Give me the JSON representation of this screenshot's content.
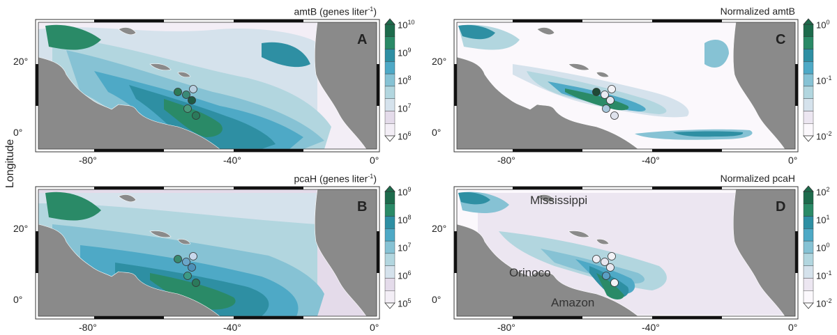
{
  "y_axis_label": "Longitude",
  "panels": [
    {
      "letter": "A",
      "title_main": "amtB (genes liter",
      "title_exp": "-1",
      "title_close": ")",
      "y_ticks": [
        "20°",
        "0°"
      ],
      "x_ticks": [
        "-80°",
        "-40°",
        "0°"
      ],
      "colorbar": {
        "base": "10",
        "exponents": [
          "10",
          "9",
          "8",
          "7",
          "6"
        ],
        "colors": [
          "#1d6b4c",
          "#2a8a67",
          "#2e8fa3",
          "#4ea9c6",
          "#86c2d4",
          "#b2d6df",
          "#d5e2ec",
          "#e4dbea",
          "#f3eef6"
        ]
      },
      "stations": [
        {
          "color": "#2d7a58"
        },
        {
          "color": "#3a8a78"
        },
        {
          "color": "#b9cfe0"
        },
        {
          "color": "#1f5a44"
        },
        {
          "color": "#4b9a7c"
        },
        {
          "color": "#2b7a5b"
        }
      ]
    },
    {
      "letter": "B",
      "title_main": "pcaH (genes liter",
      "title_exp": "-1",
      "title_close": ")",
      "y_ticks": [
        "20°",
        "0°"
      ],
      "x_ticks": [
        "-80°",
        "-40°",
        "0°"
      ],
      "colorbar": {
        "base": "10",
        "exponents": [
          "9",
          "8",
          "7",
          "6",
          "5"
        ],
        "colors": [
          "#1d6b4c",
          "#2a8a67",
          "#2e8fa3",
          "#4ea9c6",
          "#86c2d4",
          "#b2d6df",
          "#d5e2ec",
          "#e4dbea",
          "#f3eef6"
        ]
      },
      "stations": [
        {
          "color": "#3a8a6e"
        },
        {
          "color": "#6aa6c9"
        },
        {
          "color": "#c8d8ec"
        },
        {
          "color": "#4d90b7"
        },
        {
          "color": "#3c9a85"
        },
        {
          "color": "#2b7a5b"
        }
      ]
    },
    {
      "letter": "C",
      "title_main": "Normalized amtB",
      "y_ticks": [
        "20°",
        "0°"
      ],
      "x_ticks": [
        "-80°",
        "-40°",
        "0°"
      ],
      "colorbar": {
        "base": "10",
        "exponents": [
          "0",
          "-1",
          "-2"
        ],
        "colors": [
          "#1d6b4c",
          "#2a8a67",
          "#2e8fa3",
          "#4ea9c6",
          "#86c2d4",
          "#b2d6df",
          "#d5e2ec",
          "#ece6f1",
          "#fbf8fc"
        ]
      },
      "stations": [
        {
          "color": "#1f4a36"
        },
        {
          "color": "#e8eaf2"
        },
        {
          "color": "#f2f2f6"
        },
        {
          "color": "#e6e8f0"
        },
        {
          "color": "#a7c7db"
        },
        {
          "color": "#dfe2ec"
        }
      ]
    },
    {
      "letter": "D",
      "title_main": "Normalized pcaH",
      "y_ticks": [
        "20°",
        "0°"
      ],
      "x_ticks": [
        "-80°",
        "-40°",
        "0°"
      ],
      "colorbar": {
        "base": "10",
        "exponents": [
          "2",
          "1",
          "0",
          "-1",
          "-2"
        ],
        "colors": [
          "#1d6b4c",
          "#2a8a67",
          "#2e8fa3",
          "#4ea9c6",
          "#86c2d4",
          "#b2d6df",
          "#d5e2ec",
          "#ece6f1",
          "#fbf8fc"
        ]
      },
      "stations": [
        {
          "color": "#eeeef4"
        },
        {
          "color": "#e6e6ef"
        },
        {
          "color": "#f2f2f6"
        },
        {
          "color": "#e8e8f0"
        },
        {
          "color": "#5a9fc4"
        },
        {
          "color": "#f2f2f6"
        }
      ],
      "rivers": [
        "Mississippi",
        "Orinoco",
        "Amazon"
      ]
    }
  ],
  "colors": {
    "land": "#8a8a8a",
    "ocean_base": "#f6f2f8",
    "frame": "#333333"
  }
}
